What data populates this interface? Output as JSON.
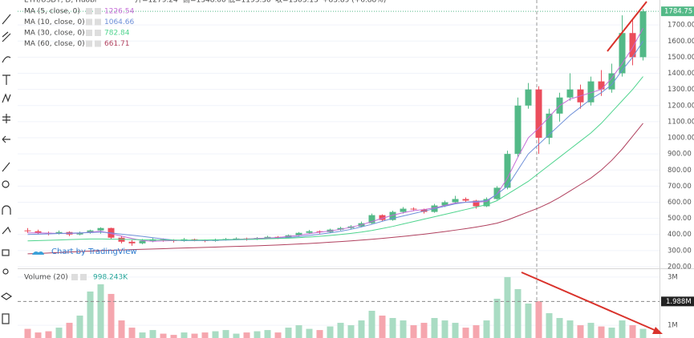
{
  "header": {
    "watermark": "Chart by TradingView"
  },
  "chart_data": [
    {
      "type": "candlestick",
      "title": "ETH/USDT, D, Huobi",
      "readout": [
        "开=1279.24",
        "高=1348.00",
        "低=1193.30",
        "收=1303.13",
        "+83.89 (+6.88%)"
      ],
      "up_color": "#53b987",
      "down_color": "#eb4d5c",
      "candles": [
        [
          425,
          440,
          410,
          420
        ],
        [
          420,
          430,
          400,
          410
        ],
        [
          410,
          418,
          395,
          405
        ],
        [
          405,
          425,
          400,
          415
        ],
        [
          415,
          420,
          390,
          400
        ],
        [
          400,
          418,
          395,
          410
        ],
        [
          410,
          430,
          405,
          425
        ],
        [
          425,
          445,
          405,
          440
        ],
        [
          440,
          442,
          370,
          380
        ],
        [
          380,
          390,
          345,
          355
        ],
        [
          355,
          365,
          330,
          345
        ],
        [
          345,
          372,
          340,
          360
        ],
        [
          360,
          378,
          352,
          370
        ],
        [
          370,
          375,
          355,
          365
        ],
        [
          365,
          370,
          350,
          360
        ],
        [
          360,
          378,
          355,
          370
        ],
        [
          370,
          374,
          358,
          365
        ],
        [
          365,
          369,
          352,
          360
        ],
        [
          360,
          374,
          355,
          368
        ],
        [
          368,
          378,
          362,
          372
        ],
        [
          372,
          382,
          366,
          375
        ],
        [
          375,
          380,
          362,
          370
        ],
        [
          370,
          384,
          366,
          378
        ],
        [
          378,
          392,
          372,
          385
        ],
        [
          385,
          390,
          372,
          380
        ],
        [
          380,
          400,
          376,
          395
        ],
        [
          395,
          415,
          390,
          410
        ],
        [
          410,
          428,
          404,
          420
        ],
        [
          420,
          425,
          405,
          415
        ],
        [
          415,
          436,
          410,
          430
        ],
        [
          430,
          448,
          424,
          440
        ],
        [
          440,
          458,
          432,
          450
        ],
        [
          450,
          480,
          445,
          470
        ],
        [
          470,
          530,
          465,
          520
        ],
        [
          520,
          525,
          480,
          490
        ],
        [
          490,
          548,
          485,
          540
        ],
        [
          540,
          570,
          530,
          560
        ],
        [
          560,
          568,
          545,
          555
        ],
        [
          555,
          560,
          530,
          540
        ],
        [
          540,
          590,
          535,
          580
        ],
        [
          580,
          610,
          570,
          600
        ],
        [
          600,
          640,
          592,
          620
        ],
        [
          620,
          630,
          600,
          610
        ],
        [
          610,
          615,
          560,
          575
        ],
        [
          575,
          630,
          570,
          620
        ],
        [
          620,
          700,
          615,
          690
        ],
        [
          690,
          920,
          680,
          900
        ],
        [
          900,
          1250,
          880,
          1200
        ],
        [
          1200,
          1340,
          1180,
          1300
        ],
        [
          1300,
          1320,
          900,
          1000
        ],
        [
          1000,
          1180,
          960,
          1150
        ],
        [
          1150,
          1280,
          1100,
          1250
        ],
        [
          1250,
          1400,
          1230,
          1300
        ],
        [
          1300,
          1330,
          1180,
          1220
        ],
        [
          1220,
          1380,
          1200,
          1350
        ],
        [
          1350,
          1420,
          1260,
          1300
        ],
        [
          1300,
          1460,
          1280,
          1400
        ],
        [
          1400,
          1760,
          1380,
          1650
        ],
        [
          1650,
          1740,
          1450,
          1500
        ],
        [
          1500,
          1800,
          1480,
          1784.75
        ]
      ],
      "series": [
        {
          "name": "MA (5, close, 0)",
          "value_label": "1226.54",
          "color": "#c46bd6",
          "values": [
            410,
            410,
            408,
            407,
            406,
            408,
            415,
            420,
            405,
            390,
            375,
            362,
            358,
            360,
            362,
            364,
            364,
            363,
            365,
            367,
            370,
            372,
            375,
            378,
            381,
            388,
            395,
            405,
            414,
            422,
            432,
            445,
            460,
            480,
            500,
            520,
            535,
            548,
            555,
            565,
            580,
            595,
            600,
            600,
            605,
            650,
            750,
            880,
            1000,
            1060,
            1130,
            1200,
            1240,
            1260,
            1280,
            1300,
            1370,
            1460,
            1560,
            1680
          ]
        },
        {
          "name": "MA (10, close, 0)",
          "value_label": "1064.66",
          "color": "#6d8fd8",
          "values": [
            400,
            402,
            404,
            406,
            408,
            410,
            412,
            415,
            410,
            402,
            395,
            388,
            380,
            372,
            365,
            362,
            362,
            363,
            364,
            365,
            367,
            369,
            371,
            374,
            377,
            381,
            387,
            394,
            402,
            410,
            420,
            432,
            447,
            463,
            482,
            500,
            515,
            530,
            545,
            560,
            575,
            590,
            600,
            605,
            610,
            650,
            700,
            800,
            900,
            960,
            1020,
            1080,
            1140,
            1190,
            1240,
            1280,
            1330,
            1420,
            1500,
            1600
          ]
        },
        {
          "name": "MA (30, close, 0)",
          "value_label": "782.84",
          "color": "#4fd48e",
          "values": [
            360,
            362,
            364,
            366,
            368,
            370,
            372,
            372,
            371,
            370,
            368,
            367,
            366,
            366,
            365,
            365,
            365,
            366,
            367,
            368,
            369,
            370,
            371,
            373,
            375,
            377,
            380,
            384,
            389,
            394,
            400,
            407,
            415,
            425,
            437,
            450,
            465,
            480,
            495,
            510,
            525,
            540,
            555,
            570,
            585,
            610,
            650,
            690,
            730,
            780,
            830,
            880,
            930,
            980,
            1030,
            1090,
            1160,
            1230,
            1300,
            1380
          ]
        },
        {
          "name": "MA (60, close, 0)",
          "value_label": "661.71",
          "color": "#b0405e",
          "values": [
            280,
            282,
            285,
            288,
            291,
            294,
            297,
            300,
            302,
            304,
            306,
            308,
            310,
            312,
            314,
            316,
            318,
            320,
            322,
            324,
            326,
            328,
            330,
            332,
            335,
            338,
            341,
            344,
            348,
            352,
            356,
            360,
            365,
            370,
            376,
            382,
            388,
            395,
            402,
            410,
            418,
            427,
            436,
            446,
            457,
            470,
            490,
            515,
            540,
            565,
            595,
            630,
            670,
            710,
            750,
            800,
            860,
            930,
            1010,
            1090
          ]
        }
      ],
      "last_price": {
        "value": 1784.75,
        "label": "1784.75"
      },
      "ylim": [
        190,
        1855
      ],
      "yticks": [
        {
          "value": 200,
          "label": "200.00"
        },
        {
          "value": 300,
          "label": "300.00"
        },
        {
          "value": 400,
          "label": "400.00"
        },
        {
          "value": 500,
          "label": "500.00"
        },
        {
          "value": 600,
          "label": "600.00"
        },
        {
          "value": 700,
          "label": "700.00"
        },
        {
          "value": 800,
          "label": "800.00"
        },
        {
          "value": 900,
          "label": "900.00"
        },
        {
          "value": 1000,
          "label": "1000.00"
        },
        {
          "value": 1100,
          "label": "1100.00"
        },
        {
          "value": 1200,
          "label": "1200.00"
        },
        {
          "value": 1300,
          "label": "1300.00"
        },
        {
          "value": 1400,
          "label": "1400.00"
        },
        {
          "value": 1500,
          "label": "1500.00"
        },
        {
          "value": 1600,
          "label": "1600.00"
        },
        {
          "value": 1700,
          "label": "1700.00"
        }
      ]
    },
    {
      "type": "bar",
      "title": "Volume (20)",
      "value_label": "998.243K",
      "value_label_color": "#26a69a",
      "up_color": "#a9dcc3",
      "down_color": "#f5a6ae",
      "values": [
        850000,
        700000,
        750000,
        900000,
        1100000,
        1400000,
        2400000,
        2700000,
        2300000,
        1200000,
        900000,
        700000,
        800000,
        650000,
        600000,
        700000,
        650000,
        700000,
        750000,
        800000,
        650000,
        700000,
        750000,
        800000,
        700000,
        900000,
        1000000,
        850000,
        800000,
        950000,
        1100000,
        1000000,
        1200000,
        1600000,
        1400000,
        1300000,
        1200000,
        1000000,
        1100000,
        1300000,
        1200000,
        1100000,
        900000,
        1000000,
        1200000,
        2100000,
        3000000,
        2500000,
        1900000,
        2000000,
        1500000,
        1300000,
        1200000,
        1000000,
        1100000,
        950000,
        900000,
        1200000,
        1000000,
        850000
      ],
      "marker_line": {
        "value": 1988000,
        "label": "1.988M"
      },
      "ylim": [
        470000,
        3330000
      ],
      "yticks": [
        {
          "value": 1000000,
          "label": "1M"
        },
        {
          "value": 3000000,
          "label": "3M"
        }
      ]
    }
  ]
}
